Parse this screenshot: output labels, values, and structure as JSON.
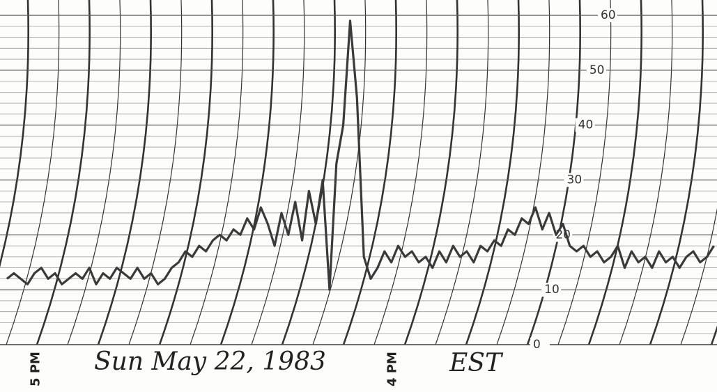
{
  "chart_data": {
    "type": "line",
    "categories": [
      null,
      null,
      null,
      null,
      "5 PM",
      null,
      null,
      null,
      null,
      null,
      null,
      null,
      null,
      null,
      null,
      null,
      null,
      null,
      null,
      null,
      null,
      null,
      null,
      null,
      null,
      null,
      null,
      null,
      null,
      null,
      null,
      null,
      null,
      null,
      null,
      null,
      null,
      null,
      null,
      null,
      null,
      null,
      null,
      null,
      null,
      null,
      null,
      null,
      null,
      null,
      null,
      null,
      null,
      null,
      null,
      null,
      "4 PM",
      null,
      null,
      null,
      null,
      null,
      null,
      null,
      null,
      null,
      null,
      null,
      null,
      null,
      null,
      null,
      null,
      null,
      null,
      null,
      null,
      null,
      null,
      null,
      null,
      null,
      null,
      null,
      null,
      null,
      null,
      null,
      null,
      null,
      null,
      null,
      null,
      null,
      null,
      null,
      null,
      null,
      null,
      null,
      null,
      null,
      null,
      null
    ],
    "values": [
      12,
      13,
      12,
      11,
      13,
      14,
      12,
      13,
      11,
      12,
      13,
      12,
      14,
      11,
      13,
      12,
      14,
      13,
      12,
      14,
      12,
      13,
      11,
      12,
      14,
      15,
      17,
      16,
      18,
      17,
      19,
      20,
      19,
      21,
      20,
      23,
      21,
      25,
      22,
      18,
      24,
      20,
      26,
      19,
      28,
      22,
      30,
      10,
      33,
      40,
      59,
      45,
      16,
      12,
      14,
      17,
      15,
      18,
      16,
      17,
      15,
      16,
      14,
      17,
      15,
      18,
      16,
      17,
      15,
      18,
      17,
      19,
      18,
      21,
      20,
      23,
      22,
      25,
      21,
      24,
      20,
      22,
      18,
      17,
      18,
      16,
      17,
      15,
      16,
      18,
      14,
      17,
      15,
      16,
      14,
      17,
      15,
      16,
      14,
      16,
      17,
      15,
      16,
      18
    ],
    "color": "#3a3a3a",
    "ylim": [
      0,
      60
    ],
    "yticks": [
      0,
      10,
      20,
      30,
      40,
      50,
      60
    ],
    "annotations": [
      "Sun May 22, 1983",
      "EST"
    ],
    "grid": true
  }
}
